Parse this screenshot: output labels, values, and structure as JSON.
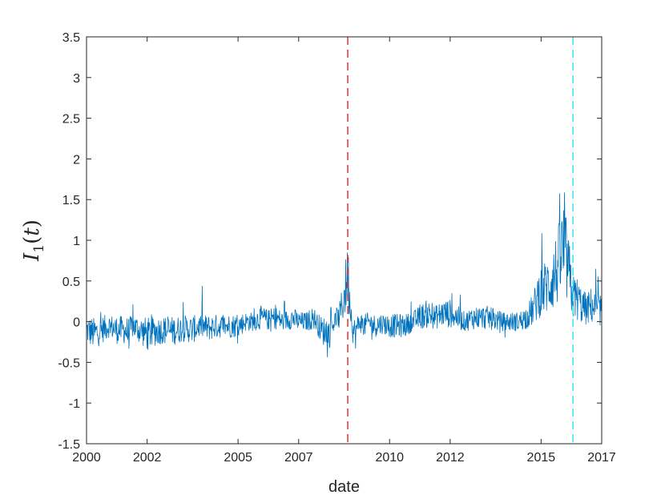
{
  "chart_data": {
    "type": "line",
    "xlabel": "date",
    "ylabel": {
      "main": "I",
      "subscript": "1",
      "argument": "t"
    },
    "x_ticks": [
      "2000",
      "2002",
      "2005",
      "2007",
      "2010",
      "2012",
      "2015",
      "2017"
    ],
    "y_ticks": [
      "-1.5",
      "-1",
      "-0.5",
      "0",
      "0.5",
      "1",
      "1.5",
      "2",
      "2.5",
      "3",
      "3.5"
    ],
    "xlim": [
      "2000-01-01",
      "2017-01-01"
    ],
    "ylim": [
      -1.5,
      3.5
    ],
    "grid": false,
    "series": [
      {
        "color": "#0072BD",
        "x": [
          "2000-01-01",
          "2000-04-01",
          "2000-07-01",
          "2000-10-01",
          "2001-01-01",
          "2001-04-01",
          "2001-06-01",
          "2001-07-01",
          "2001-10-01",
          "2002-01-01",
          "2002-04-01",
          "2002-07-01",
          "2002-10-01",
          "2003-01-01",
          "2003-04-01",
          "2003-07-01",
          "2003-10-01",
          "2004-01-01",
          "2004-04-01",
          "2004-07-01",
          "2004-10-01",
          "2005-01-01",
          "2005-04-01",
          "2005-07-01",
          "2005-10-01",
          "2006-01-01",
          "2006-04-01",
          "2006-07-01",
          "2006-10-01",
          "2007-01-01",
          "2007-04-01",
          "2007-07-01",
          "2007-10-01",
          "2008-01-01",
          "2008-03-01",
          "2008-05-01",
          "2008-07-01",
          "2008-08-15",
          "2008-09-15",
          "2008-10-15",
          "2008-11-15",
          "2009-01-01",
          "2009-03-01",
          "2009-05-01",
          "2009-07-01",
          "2009-10-01",
          "2010-01-01",
          "2010-04-01",
          "2010-07-01",
          "2010-10-01",
          "2011-01-01",
          "2011-04-01",
          "2011-07-01",
          "2011-10-01",
          "2012-01-01",
          "2012-04-01",
          "2012-07-01",
          "2012-10-01",
          "2013-01-01",
          "2013-04-01",
          "2013-07-01",
          "2013-10-01",
          "2014-01-01",
          "2014-04-01",
          "2014-07-01",
          "2014-10-01",
          "2014-12-01",
          "2015-02-01",
          "2015-04-01",
          "2015-06-01",
          "2015-08-01",
          "2015-10-01",
          "2015-12-01",
          "2016-01-15",
          "2016-03-01",
          "2016-05-01",
          "2016-07-01",
          "2016-09-01",
          "2016-11-01",
          "2016-12-31"
        ],
        "values": [
          -0.1,
          -0.15,
          -0.1,
          -0.05,
          -0.1,
          -0.1,
          -0.15,
          -0.05,
          -0.1,
          -0.15,
          -0.12,
          -0.1,
          -0.12,
          -0.1,
          -0.08,
          -0.1,
          -0.05,
          -0.08,
          -0.06,
          -0.05,
          -0.05,
          -0.05,
          0.0,
          0.0,
          0.05,
          0.02,
          0.05,
          0.0,
          0.05,
          0.0,
          0.0,
          0.05,
          -0.1,
          -0.15,
          0.0,
          0.05,
          0.3,
          0.6,
          0.2,
          -0.1,
          -0.15,
          0.0,
          -0.05,
          0.0,
          -0.05,
          -0.02,
          -0.05,
          -0.05,
          -0.05,
          0.0,
          0.05,
          0.1,
          0.05,
          0.1,
          0.1,
          0.05,
          0.0,
          0.05,
          0.05,
          0.05,
          0.02,
          0.0,
          0.0,
          0.0,
          0.05,
          0.15,
          0.35,
          0.4,
          0.45,
          0.55,
          0.7,
          0.9,
          0.6,
          0.3,
          0.3,
          0.2,
          0.15,
          0.2,
          0.15,
          0.15
        ]
      }
    ],
    "annotations": [
      {
        "kind": "vertical-dashed-line",
        "x": "2008-08-15",
        "color": "#E3342F"
      },
      {
        "kind": "vertical-dashed-line",
        "x": "2016-01-20",
        "color": "#33E6F2"
      }
    ]
  }
}
